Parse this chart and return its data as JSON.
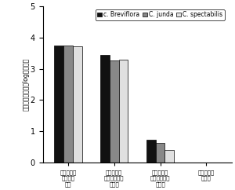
{
  "title": "",
  "ylabel_chars": "線虫寄生根指数（log変換値）",
  "categories_raw": [
    "トウガラシ\n前作休鈦\n単作",
    "トウガラシ\nクロタラリア\n混作．",
    "トウガラシ\nクロタラリア\n輪作．",
    "センチュウ\n無接種"
  ],
  "series": [
    {
      "label": "c. Breviflora",
      "color": "#111111",
      "values": [
        3.75,
        3.45,
        0.72,
        null
      ]
    },
    {
      "label": "C. junda",
      "color": "#888888",
      "values": [
        3.75,
        3.27,
        0.63,
        null
      ]
    },
    {
      "label": "C. spectabilis",
      "color": "#e0e0e0",
      "values": [
        3.72,
        3.3,
        0.4,
        null
      ]
    }
  ],
  "ylim": [
    0,
    5
  ],
  "yticks": [
    0,
    1,
    2,
    3,
    4,
    5
  ],
  "bar_width": 0.2,
  "legend_fontsize": 5.5,
  "xtick_fontsize": 5,
  "ytick_fontsize": 7,
  "ylabel_fontsize": 5.5,
  "background_color": "#ffffff"
}
